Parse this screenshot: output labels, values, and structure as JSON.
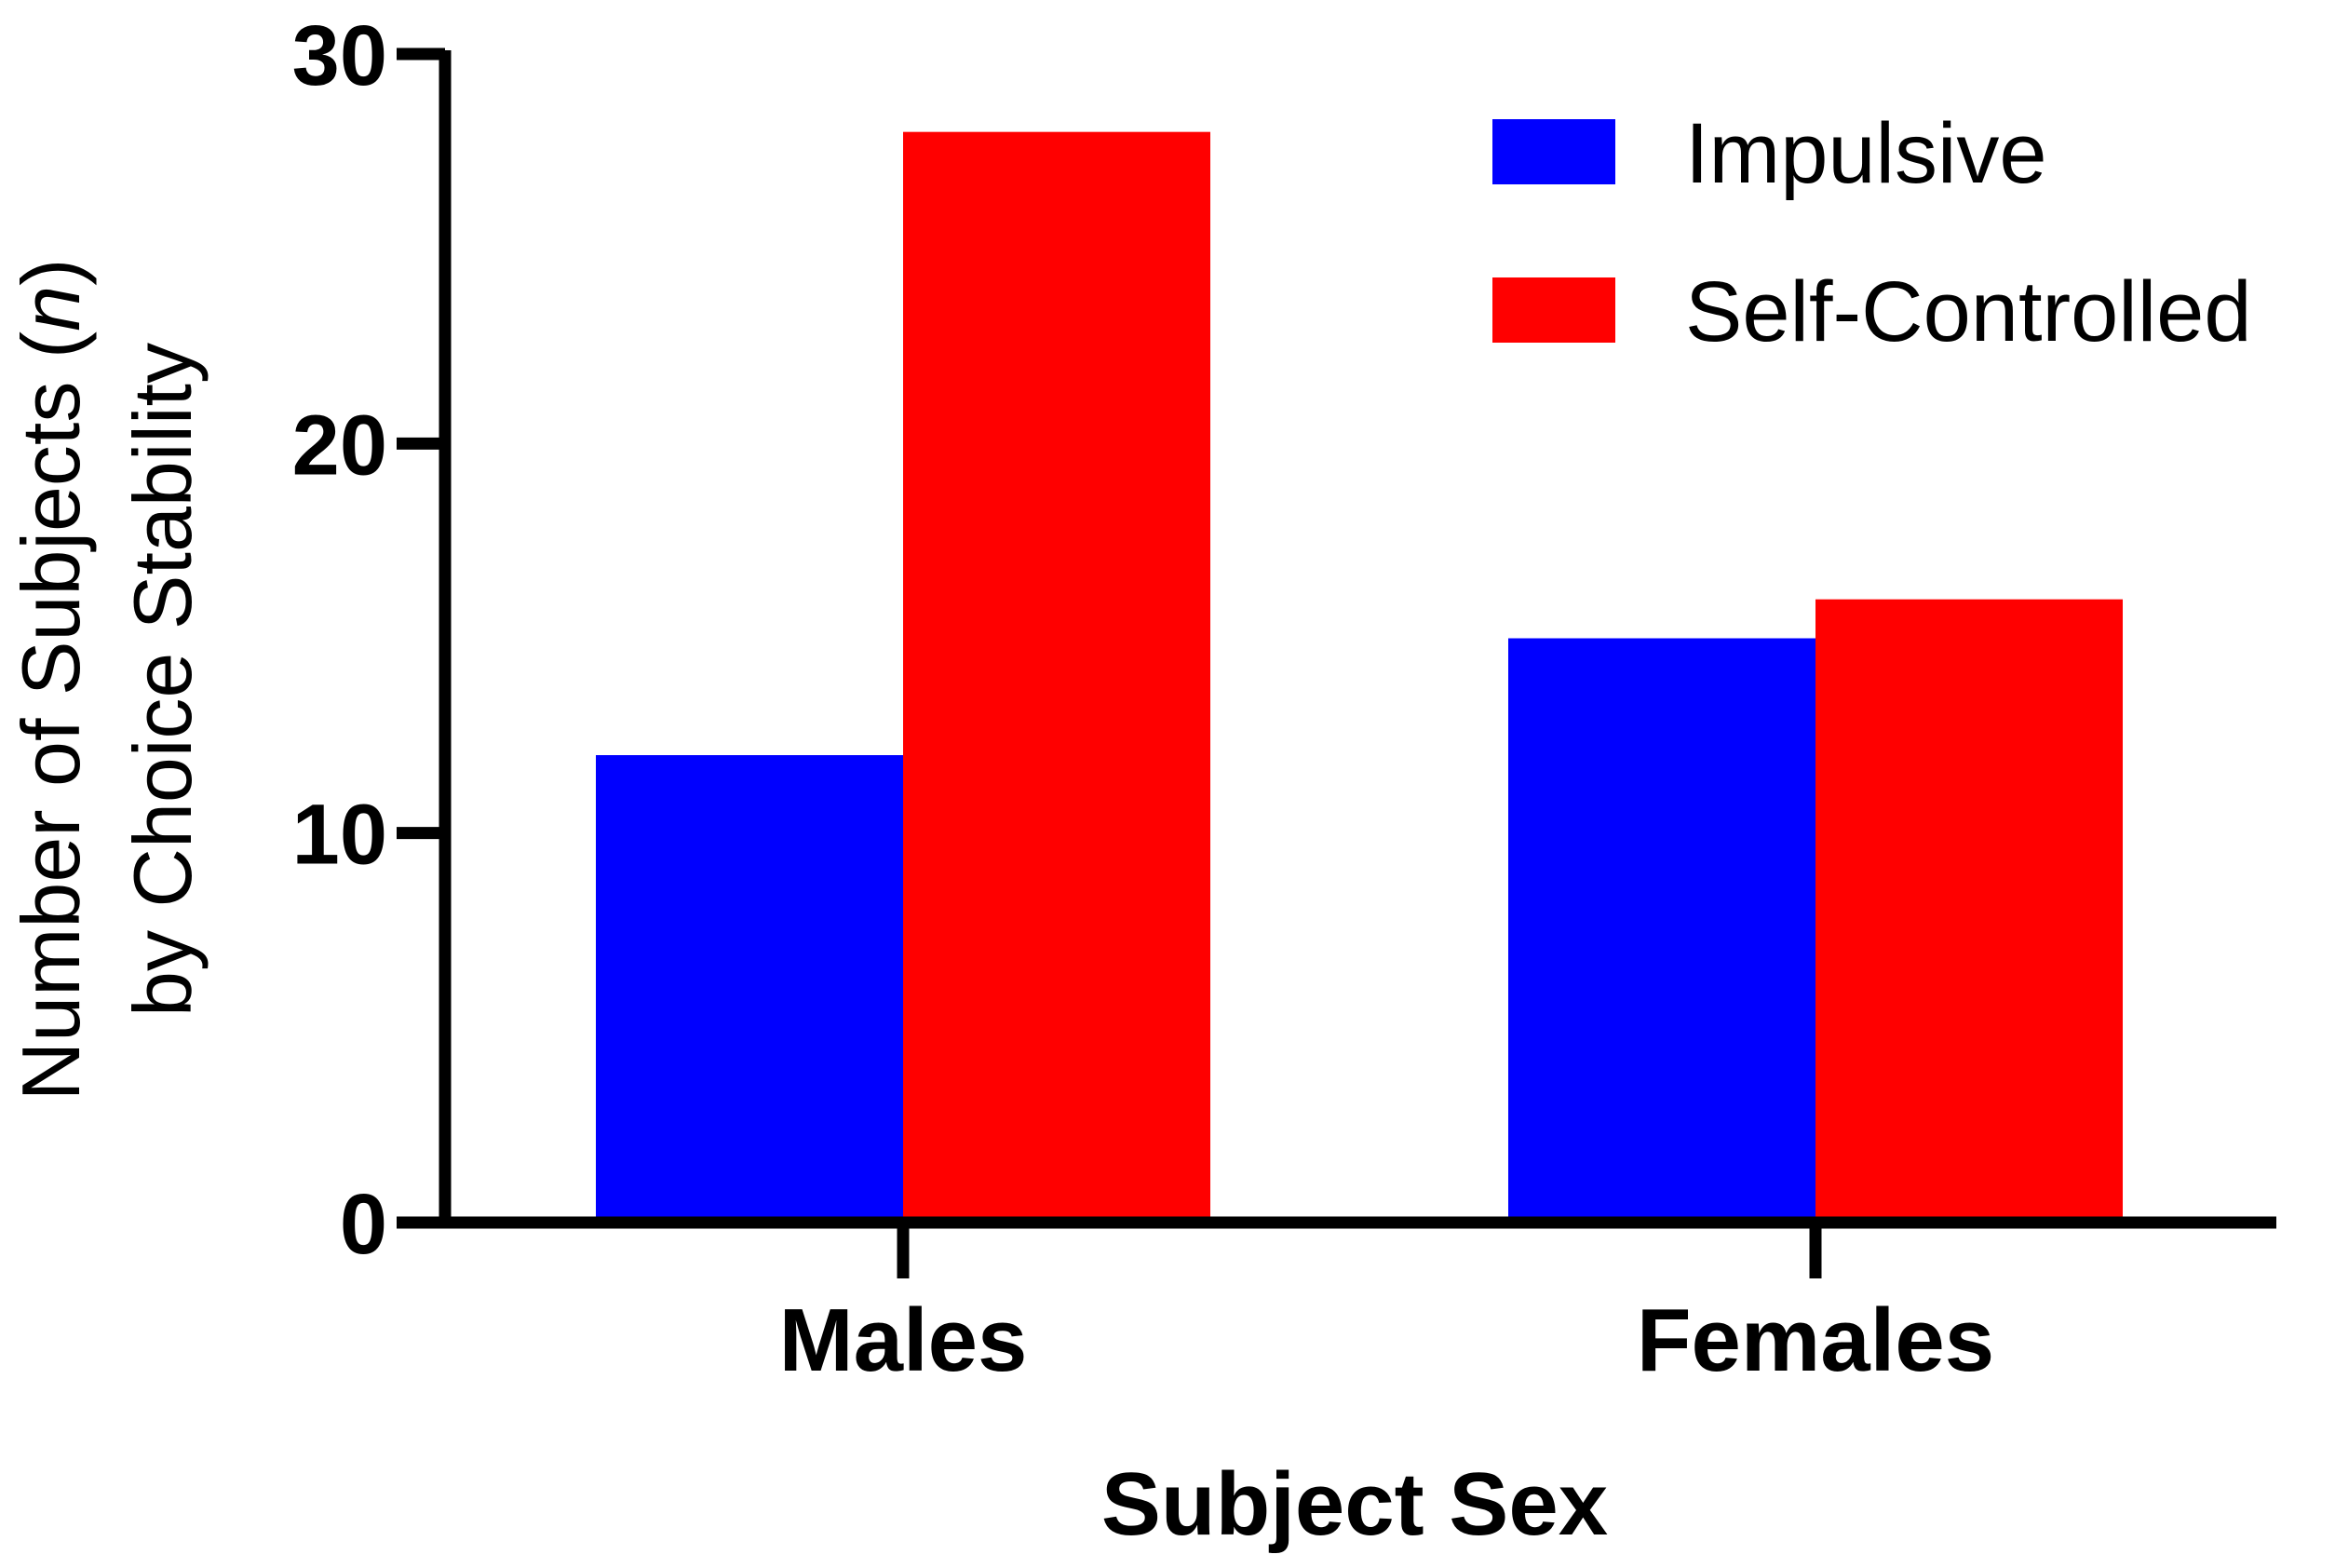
{
  "chart_data": {
    "type": "bar",
    "categories": [
      "Males",
      "Females"
    ],
    "series": [
      {
        "name": "Impulsive",
        "values": [
          12,
          15
        ],
        "color": "#0000ff"
      },
      {
        "name": "Self-Controlled",
        "values": [
          28,
          16
        ],
        "color": "#ff0000"
      }
    ],
    "xlabel": "Subject Sex",
    "ylabel_line1": "Number of Subjects  (",
    "ylabel_italic": "n",
    "ylabel_line1_end": ")",
    "ylabel_line2": "by Choice Stability",
    "ylim": [
      0,
      30
    ],
    "yticks": [
      0,
      10,
      20,
      30
    ],
    "grid": false,
    "legend_position": "top-right"
  }
}
